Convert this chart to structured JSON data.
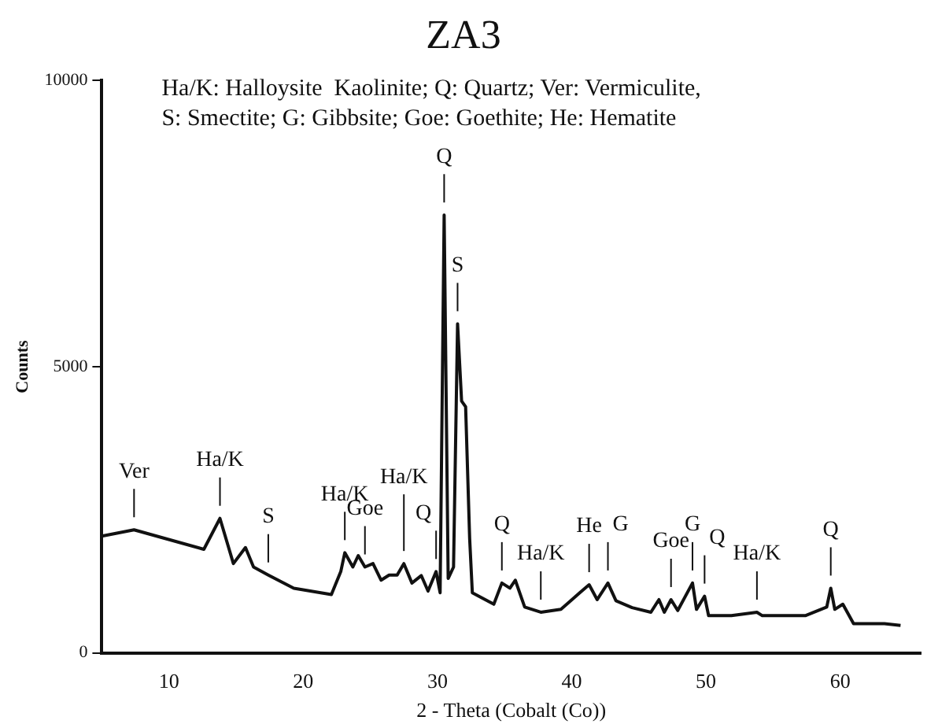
{
  "chart_data": {
    "type": "line",
    "title": "ZA3",
    "xlabel": "2 - Theta (Cobalt (Co))",
    "ylabel": "Counts",
    "xlim": [
      5,
      66
    ],
    "xticks": [
      10,
      20,
      30,
      40,
      50,
      60
    ],
    "ylim": [
      0,
      10000
    ],
    "yticks": [
      {
        "value": 0,
        "label": "0"
      },
      {
        "value": 5000,
        "label": "5000"
      },
      {
        "value": 10000,
        "label": "10000"
      }
    ],
    "grid": false,
    "legend": false,
    "marker": "none",
    "line_style": "solid",
    "annotations": [
      "Ha/K: Halloysite  Kaolinite; Q: Quartz; Ver: Vermiculite,",
      "S: Smectite; G: Gibbsite; Goe: Goethite; He: Hematite",
      {
        "text": "Ver",
        "x": 7.4,
        "y": 2150
      },
      {
        "text": "Ha/K",
        "x": 13.8,
        "y": 2350
      },
      {
        "text": "S",
        "x": 17.4,
        "y": 1360
      },
      {
        "text": "Ha/K",
        "x": 23.1,
        "y": 1750
      },
      {
        "text": "Goe",
        "x": 24.6,
        "y": 1500
      },
      {
        "text": "Ha/K",
        "x": 27.5,
        "y": 1560
      },
      {
        "text": "Q",
        "x": 29.9,
        "y": 1420
      },
      {
        "text": "Q",
        "x": 30.5,
        "y": 7650
      },
      {
        "text": "S",
        "x": 31.5,
        "y": 5750
      },
      {
        "text": "Q",
        "x": 34.8,
        "y": 1220
      },
      {
        "text": "Ha/K",
        "x": 37.7,
        "y": 710
      },
      {
        "text": "He",
        "x": 41.3,
        "y": 1190
      },
      {
        "text": "G",
        "x": 42.7,
        "y": 1220
      },
      {
        "text": "Goe",
        "x": 47.4,
        "y": 930
      },
      {
        "text": "G",
        "x": 49,
        "y": 1220
      },
      {
        "text": "Q",
        "x": 49.9,
        "y": 990
      },
      {
        "text": "Ha/K",
        "x": 53.8,
        "y": 710
      },
      {
        "text": "Q",
        "x": 59.3,
        "y": 1130
      }
    ],
    "series": [
      {
        "color": "#111111",
        "x": [
          5,
          7.4,
          12.6,
          13.8,
          14.8,
          15.7,
          16.3,
          17.4,
          19.3,
          22.1,
          22.8,
          23.1,
          23.7,
          24.1,
          24.6,
          25.2,
          25.8,
          26.4,
          27,
          27.5,
          28.1,
          28.8,
          29.3,
          29.9,
          30.2,
          30.5,
          30.8,
          31.2,
          31.5,
          31.8,
          32.1,
          32.4,
          32.6,
          34.2,
          34.8,
          35.4,
          35.8,
          36.5,
          37.7,
          39.2,
          40.6,
          41.3,
          41.9,
          42.7,
          43.3,
          44.5,
          45.9,
          46.5,
          46.9,
          47.4,
          47.9,
          49,
          49.3,
          49.9,
          50.2,
          51.9,
          53.8,
          54.2,
          57.4,
          59,
          59.3,
          59.6,
          60.2,
          61,
          63.3,
          64.5
        ],
        "values": [
          2040,
          2150,
          1810,
          2350,
          1560,
          1840,
          1500,
          1360,
          1130,
          1020,
          1420,
          1750,
          1500,
          1700,
          1500,
          1560,
          1270,
          1360,
          1360,
          1560,
          1220,
          1350,
          1080,
          1420,
          1050,
          7650,
          1300,
          1500,
          5750,
          4400,
          4300,
          2000,
          1050,
          850,
          1220,
          1130,
          1270,
          800,
          710,
          760,
          1050,
          1190,
          930,
          1220,
          910,
          790,
          710,
          930,
          710,
          930,
          740,
          1220,
          760,
          990,
          650,
          650,
          710,
          650,
          650,
          800,
          1130,
          760,
          850,
          510,
          510,
          480
        ]
      }
    ]
  }
}
